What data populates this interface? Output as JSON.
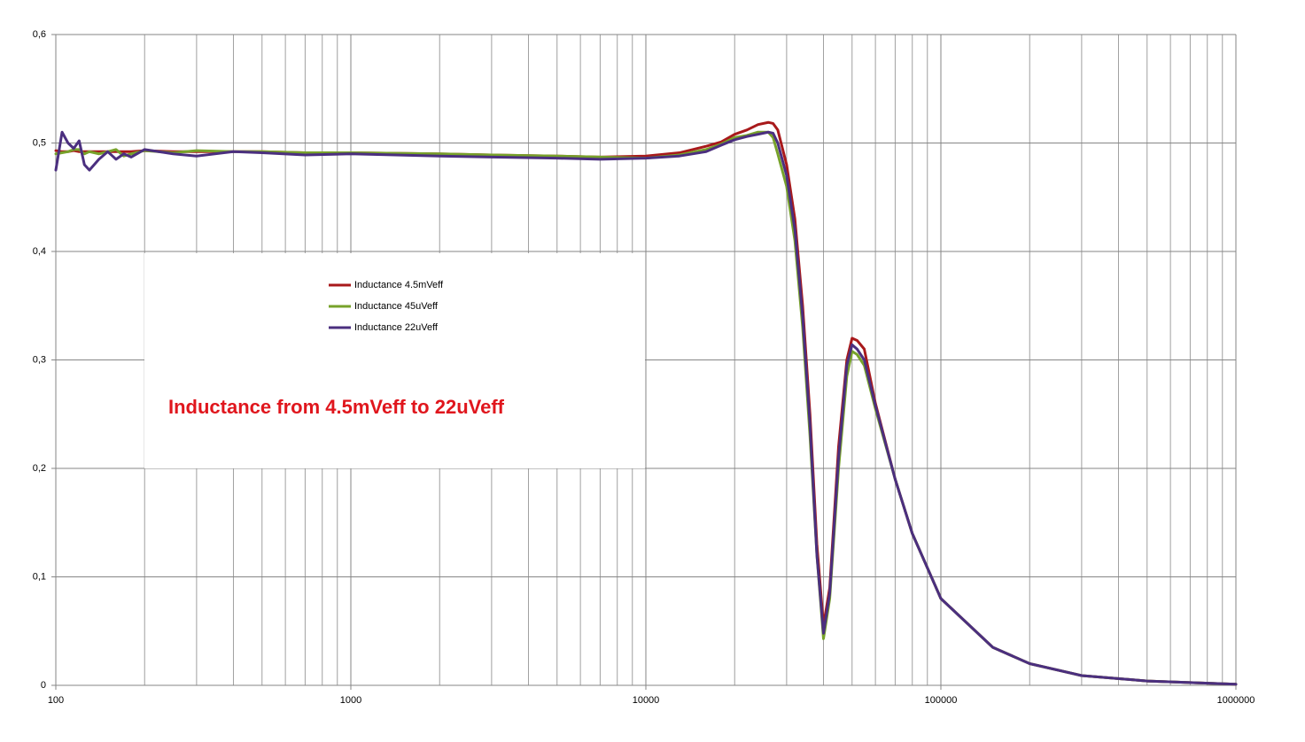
{
  "chart_data": {
    "type": "line",
    "annotation": "Inductance from 4.5mVeff to 22uVeff",
    "annotation_color": "#e0161d",
    "x": [
      100,
      105,
      110,
      115,
      120,
      125,
      130,
      140,
      150,
      160,
      170,
      180,
      200,
      250,
      300,
      400,
      500,
      700,
      1000,
      2000,
      3000,
      5000,
      7000,
      10000,
      13000,
      16000,
      18000,
      20000,
      22000,
      24000,
      26000,
      27000,
      28000,
      30000,
      32000,
      34000,
      36000,
      38000,
      40000,
      42000,
      45000,
      48000,
      50000,
      52000,
      55000,
      60000,
      70000,
      80000,
      100000,
      150000,
      200000,
      300000,
      500000,
      1000000
    ],
    "series": [
      {
        "name": "Inductance 4.5mVeff",
        "color": "#a8191b",
        "values": [
          0.493,
          0.492,
          0.492,
          0.493,
          0.492,
          0.492,
          0.492,
          0.492,
          0.492,
          0.492,
          0.492,
          0.492,
          0.493,
          0.492,
          0.492,
          0.492,
          0.492,
          0.491,
          0.491,
          0.49,
          0.489,
          0.488,
          0.487,
          0.488,
          0.491,
          0.497,
          0.501,
          0.508,
          0.512,
          0.517,
          0.519,
          0.518,
          0.512,
          0.48,
          0.43,
          0.35,
          0.25,
          0.13,
          0.055,
          0.09,
          0.22,
          0.3,
          0.32,
          0.318,
          0.31,
          0.26,
          0.19,
          0.14,
          0.08,
          0.035,
          0.02,
          0.009,
          0.004,
          0.001
        ]
      },
      {
        "name": "Inductance 45uVeff",
        "color": "#77a22a",
        "values": [
          0.49,
          0.491,
          0.492,
          0.494,
          0.494,
          0.49,
          0.492,
          0.49,
          0.492,
          0.494,
          0.488,
          0.49,
          0.493,
          0.491,
          0.493,
          0.492,
          0.492,
          0.491,
          0.491,
          0.49,
          0.489,
          0.488,
          0.487,
          0.486,
          0.489,
          0.494,
          0.499,
          0.505,
          0.507,
          0.51,
          0.51,
          0.505,
          0.49,
          0.46,
          0.41,
          0.33,
          0.23,
          0.12,
          0.043,
          0.08,
          0.2,
          0.285,
          0.308,
          0.305,
          0.295,
          0.255,
          0.19,
          0.14,
          0.08,
          0.035,
          0.02,
          0.009,
          0.004,
          0.001
        ]
      },
      {
        "name": "Inductance 22uVeff",
        "color": "#4b2f7f",
        "values": [
          0.475,
          0.51,
          0.5,
          0.495,
          0.502,
          0.48,
          0.475,
          0.485,
          0.492,
          0.485,
          0.49,
          0.487,
          0.494,
          0.49,
          0.488,
          0.492,
          0.491,
          0.489,
          0.49,
          0.488,
          0.487,
          0.486,
          0.485,
          0.486,
          0.488,
          0.492,
          0.498,
          0.503,
          0.506,
          0.508,
          0.51,
          0.509,
          0.5,
          0.47,
          0.42,
          0.34,
          0.24,
          0.12,
          0.048,
          0.085,
          0.21,
          0.295,
          0.314,
          0.31,
          0.3,
          0.258,
          0.19,
          0.14,
          0.08,
          0.035,
          0.02,
          0.009,
          0.004,
          0.001
        ]
      }
    ],
    "xscale": "log",
    "xlim": [
      100,
      1000000
    ],
    "xticks": [
      100,
      1000,
      10000,
      100000,
      1000000
    ],
    "xminorticks": [
      200,
      300,
      400,
      500,
      600,
      700,
      800,
      900,
      2000,
      3000,
      4000,
      5000,
      6000,
      7000,
      8000,
      9000,
      20000,
      30000,
      40000,
      50000,
      60000,
      70000,
      80000,
      90000,
      200000,
      300000,
      400000,
      500000,
      600000,
      700000,
      800000,
      900000
    ],
    "ylim": [
      0,
      0.6
    ],
    "yticks": [
      0,
      {
        "value": 0.1,
        "label": "0,1"
      },
      {
        "value": 0.2,
        "label": "0,2"
      },
      {
        "value": 0.3,
        "label": "0,3"
      },
      {
        "value": 0.4,
        "label": "0,4"
      },
      {
        "value": 0.5,
        "label": "0,5"
      },
      {
        "value": 0.6,
        "label": "0,6"
      }
    ],
    "grid": true
  }
}
